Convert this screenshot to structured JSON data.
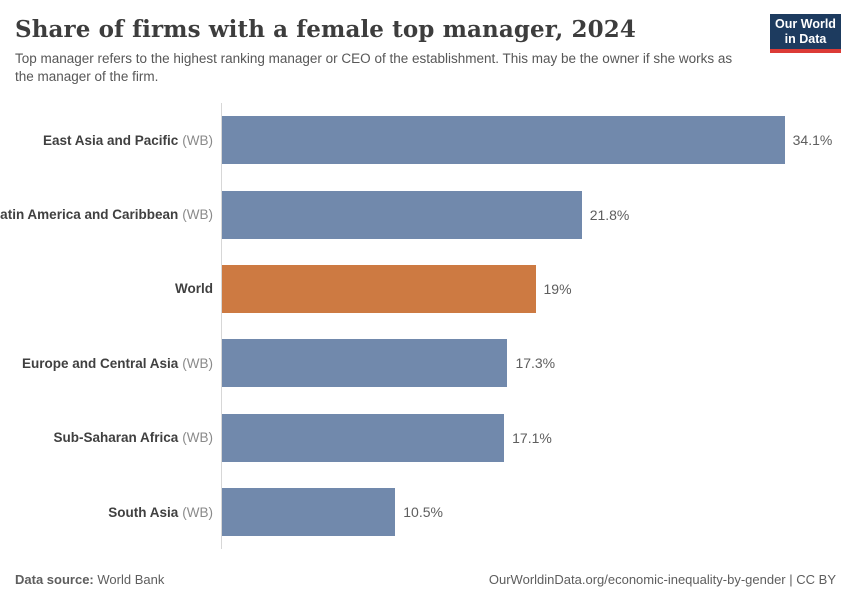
{
  "header": {
    "title": "Share of firms with a female top manager, 2024",
    "subtitle": "Top manager refers to the highest ranking manager or CEO of the establishment. This may be the owner if she works as the manager of the firm.",
    "logo": {
      "line1": "Our World",
      "line2": "in Data"
    }
  },
  "chart_data": {
    "type": "bar",
    "orientation": "horizontal",
    "title": "Share of firms with a female top manager, 2024",
    "unit": "%",
    "x_axis_visible": false,
    "xlim": [
      0,
      38
    ],
    "grid": false,
    "legend": "none",
    "categories": [
      "East Asia and Pacific (WB)",
      "Latin America and Caribbean (WB)",
      "World",
      "Europe and Central Asia (WB)",
      "Sub-Saharan Africa (WB)",
      "South Asia (WB)"
    ],
    "values": [
      34.1,
      21.8,
      19,
      17.3,
      17.1,
      10.5
    ],
    "rows": [
      {
        "entity": "East Asia and Pacific",
        "entity_suffix": "(WB)",
        "value": 34.1,
        "value_label": "34.1%",
        "color": "#7189ac"
      },
      {
        "entity": "Latin America and Caribbean",
        "entity_suffix": "(WB)",
        "value": 21.8,
        "value_label": "21.8%",
        "color": "#7189ac"
      },
      {
        "entity": "World",
        "entity_suffix": "",
        "value": 19,
        "value_label": "19%",
        "color": "#cd7a42"
      },
      {
        "entity": "Europe and Central Asia",
        "entity_suffix": "(WB)",
        "value": 17.3,
        "value_label": "17.3%",
        "color": "#7189ac"
      },
      {
        "entity": "Sub-Saharan Africa",
        "entity_suffix": "(WB)",
        "value": 17.1,
        "value_label": "17.1%",
        "color": "#7189ac"
      },
      {
        "entity": "South Asia",
        "entity_suffix": "(WB)",
        "value": 10.5,
        "value_label": "10.5%",
        "color": "#7189ac"
      }
    ]
  },
  "footer": {
    "datasource_label": "Data source:",
    "datasource_value": "World Bank",
    "url": "OurWorldinData.org/economic-inequality-by-gender",
    "separator": "|",
    "license": "CC BY"
  },
  "colors": {
    "bar_default": "#7189ac",
    "bar_highlight": "#cd7a42",
    "logo_background": "#1d3b5f",
    "logo_underline": "#dc3b36",
    "axis_line": "#d7d7d7"
  }
}
